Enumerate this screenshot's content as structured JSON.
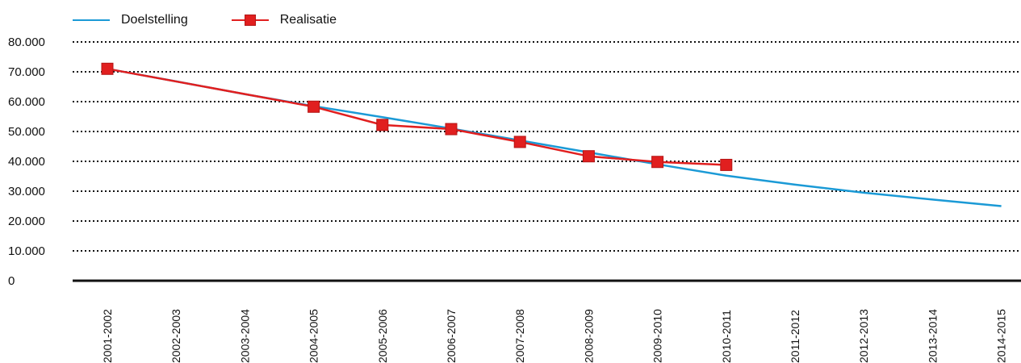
{
  "chart_data": {
    "type": "line",
    "categories": [
      "2001-2002",
      "2002-2003",
      "2003-2004",
      "2004-2005",
      "2005-2006",
      "2006-2007",
      "2007-2008",
      "2008-2009",
      "2009-2010",
      "2010-2011",
      "2011-2012",
      "2012-2013",
      "2013-2014",
      "2014-2015"
    ],
    "series": [
      {
        "name": "Doelstelling",
        "color": "#1b9ad6",
        "values": [
          71000,
          66800,
          62500,
          58500,
          54800,
          51000,
          47000,
          43000,
          39000,
          35200,
          32200,
          29500,
          27200,
          25000
        ]
      },
      {
        "name": "Realisatie",
        "color": "#e11f1f",
        "marker": "square",
        "values": [
          71000,
          null,
          null,
          58300,
          52200,
          50800,
          46500,
          41700,
          39800,
          38800,
          null,
          null,
          null,
          null
        ]
      }
    ],
    "yticks": [
      "0",
      "10.000",
      "20.000",
      "30.000",
      "40.000",
      "50.000",
      "60.000",
      "70.000",
      "80.000"
    ],
    "ylim": [
      0,
      80000
    ],
    "grid": "dotted horizontal",
    "legend_position": "top-left"
  }
}
